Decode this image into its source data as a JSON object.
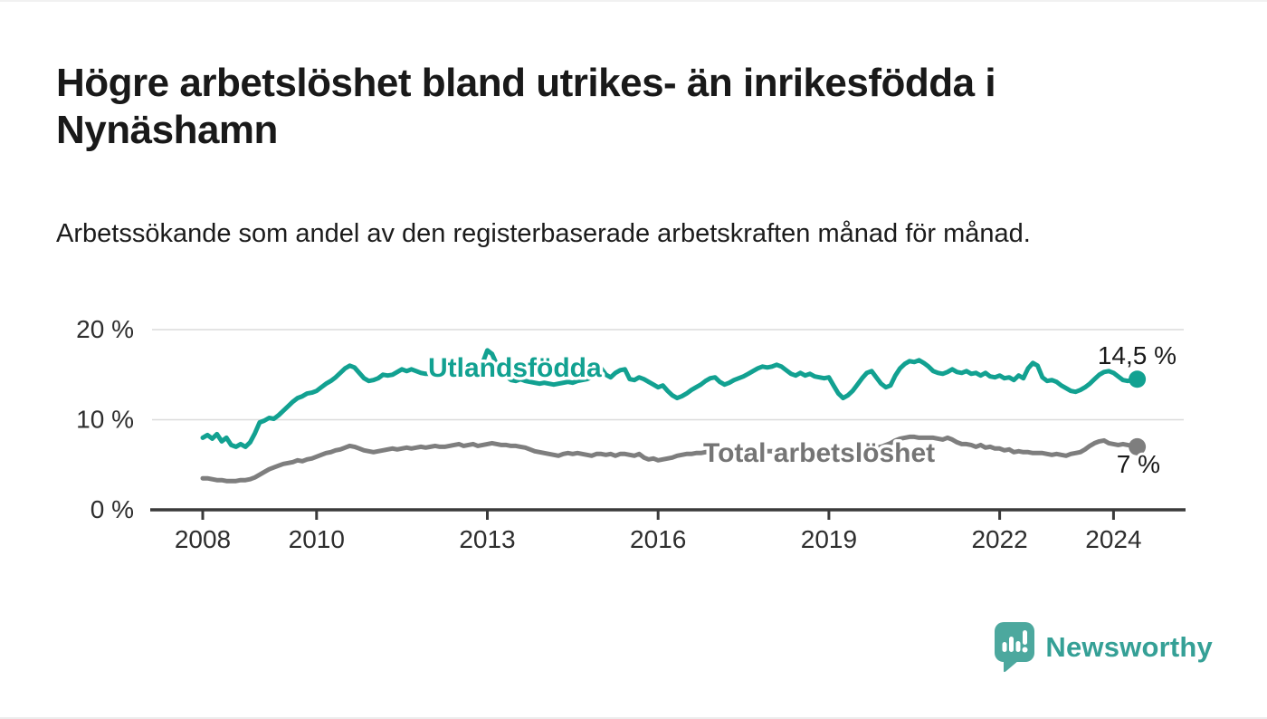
{
  "title": "Högre arbetslöshet bland utrikes- än inrikesfödda i Nynäshamn",
  "subtitle": "Arbetssökande som andel av den registerbaserade arbetskraften månad för månad.",
  "branding": {
    "logo_text": "Newsworthy",
    "logo_icon": "newsworthy-speech-bubble-bar-chart-icon",
    "logo_color": "#4CA89E",
    "logo_text_color": "#35a096"
  },
  "chart_data": {
    "type": "line",
    "title": "Högre arbetslöshet bland utrikes- än inrikesfödda i Nynäshamn",
    "subtitle": "Arbetssökande som andel av den registerbaserade arbetskraften månad för månad.",
    "unit": "%",
    "frequency": "monthly",
    "x_start": "2008-01",
    "x_end": "2024-06",
    "ylim": [
      0,
      20
    ],
    "grid": "horizontal",
    "legend": "inline-labels",
    "axis_color": "#3a3a3a",
    "gridline_color": "#dbdbdb",
    "tick_text_color": "#2e2e2e",
    "annotation_text_color": "#1a1a1a",
    "y_ticks": [
      {
        "value": 0,
        "label": "0 %"
      },
      {
        "value": 10,
        "label": "10 %"
      },
      {
        "value": 20,
        "label": "20 %"
      }
    ],
    "x_ticks": [
      {
        "year": 2008,
        "label": "2008"
      },
      {
        "year": 2010,
        "label": "2010"
      },
      {
        "year": 2013,
        "label": "2013"
      },
      {
        "year": 2016,
        "label": "2016"
      },
      {
        "year": 2019,
        "label": "2019"
      },
      {
        "year": 2022,
        "label": "2022"
      },
      {
        "year": 2024,
        "label": "2024"
      }
    ],
    "series": [
      {
        "name": "Utlandsfödda",
        "inline_label": "Utlandsfödda",
        "end_annotation": "14,5 %",
        "end_value": 14.5,
        "color": "#12a191",
        "start": "2008-01",
        "values": [
          8.0,
          8.3,
          7.9,
          8.4,
          7.6,
          8.0,
          7.2,
          7.0,
          7.3,
          7.0,
          7.5,
          8.5,
          9.7,
          9.9,
          10.2,
          10.1,
          10.5,
          11.0,
          11.5,
          12.0,
          12.4,
          12.6,
          12.9,
          13.0,
          13.2,
          13.6,
          14.0,
          14.3,
          14.7,
          15.2,
          15.7,
          16.0,
          15.8,
          15.2,
          14.6,
          14.3,
          14.4,
          14.6,
          15.0,
          14.9,
          15.0,
          15.3,
          15.6,
          15.4,
          15.6,
          15.4,
          15.2,
          15.1,
          15.1,
          15.0,
          15.2,
          15.3,
          15.1,
          14.9,
          15.0,
          15.2,
          15.1,
          15.3,
          15.5,
          16.3,
          17.7,
          17.3,
          16.1,
          15.3,
          14.8,
          14.4,
          14.3,
          14.5,
          14.3,
          14.2,
          14.1,
          14.0,
          14.1,
          14.0,
          13.9,
          14.0,
          14.1,
          14.2,
          14.1,
          14.3,
          14.4,
          14.5,
          14.7,
          15.1,
          15.7,
          15.0,
          14.7,
          15.2,
          15.5,
          15.6,
          14.5,
          14.4,
          14.7,
          14.5,
          14.2,
          13.9,
          13.6,
          13.8,
          13.2,
          12.7,
          12.4,
          12.6,
          12.9,
          13.3,
          13.6,
          13.9,
          14.3,
          14.6,
          14.7,
          14.2,
          13.9,
          14.1,
          14.4,
          14.6,
          14.8,
          15.1,
          15.4,
          15.7,
          15.9,
          15.8,
          15.9,
          16.1,
          15.9,
          15.5,
          15.1,
          14.9,
          15.2,
          14.9,
          15.1,
          14.8,
          14.7,
          14.6,
          14.7,
          13.8,
          12.9,
          12.4,
          12.7,
          13.2,
          13.9,
          14.6,
          15.2,
          15.4,
          14.7,
          14.0,
          13.6,
          13.8,
          14.9,
          15.7,
          16.2,
          16.5,
          16.4,
          16.6,
          16.3,
          15.9,
          15.4,
          15.2,
          15.1,
          15.3,
          15.6,
          15.3,
          15.2,
          15.4,
          15.1,
          15.2,
          14.9,
          15.2,
          14.8,
          14.7,
          14.9,
          14.6,
          14.7,
          14.4,
          14.9,
          14.6,
          15.7,
          16.3,
          16.0,
          14.7,
          14.3,
          14.4,
          14.2,
          13.8,
          13.5,
          13.2,
          13.1,
          13.3,
          13.6,
          14.0,
          14.5,
          15.0,
          15.3,
          15.4,
          15.2,
          14.8,
          14.4,
          14.3,
          14.4,
          14.5
        ]
      },
      {
        "name": "Total arbetslöshet",
        "inline_label": "Total arbetslöshet",
        "end_annotation": "7 %",
        "end_value": 7.0,
        "color": "#7e7e7e",
        "label_color": "#757575",
        "start": "2008-01",
        "values": [
          3.5,
          3.5,
          3.4,
          3.3,
          3.3,
          3.2,
          3.2,
          3.2,
          3.3,
          3.3,
          3.4,
          3.6,
          3.9,
          4.2,
          4.5,
          4.7,
          4.9,
          5.1,
          5.2,
          5.3,
          5.5,
          5.4,
          5.6,
          5.7,
          5.9,
          6.1,
          6.3,
          6.4,
          6.6,
          6.7,
          6.9,
          7.1,
          7.0,
          6.8,
          6.6,
          6.5,
          6.4,
          6.5,
          6.6,
          6.7,
          6.8,
          6.7,
          6.8,
          6.9,
          6.8,
          6.9,
          7.0,
          6.9,
          7.0,
          7.1,
          7.0,
          7.0,
          7.1,
          7.2,
          7.3,
          7.1,
          7.2,
          7.3,
          7.1,
          7.2,
          7.3,
          7.4,
          7.3,
          7.2,
          7.2,
          7.1,
          7.1,
          7.0,
          6.9,
          6.7,
          6.5,
          6.4,
          6.3,
          6.2,
          6.1,
          6.0,
          6.2,
          6.3,
          6.2,
          6.3,
          6.2,
          6.1,
          6.0,
          6.2,
          6.2,
          6.1,
          6.2,
          6.0,
          6.2,
          6.2,
          6.1,
          6.0,
          6.2,
          5.8,
          5.6,
          5.7,
          5.5,
          5.6,
          5.7,
          5.8,
          6.0,
          6.1,
          6.2,
          6.2,
          6.3,
          6.3,
          6.4,
          6.4,
          6.4,
          6.5,
          6.5,
          6.5,
          6.6,
          6.6,
          6.6,
          6.6,
          6.6,
          6.6,
          6.5,
          6.5,
          6.5,
          6.5,
          6.4,
          6.4,
          6.4,
          6.4,
          6.5,
          6.4,
          6.4,
          6.4,
          6.4,
          6.5,
          6.5,
          6.5,
          6.5,
          6.5,
          6.6,
          6.6,
          6.7,
          6.7,
          6.8,
          6.8,
          6.9,
          7.0,
          7.2,
          7.4,
          7.7,
          7.9,
          8.0,
          8.1,
          8.1,
          8.0,
          8.0,
          8.0,
          8.0,
          7.9,
          7.8,
          8.0,
          7.8,
          7.5,
          7.3,
          7.3,
          7.2,
          7.0,
          7.2,
          6.9,
          7.0,
          6.8,
          6.8,
          6.6,
          6.7,
          6.4,
          6.5,
          6.4,
          6.4,
          6.3,
          6.3,
          6.3,
          6.2,
          6.1,
          6.2,
          6.1,
          6.0,
          6.2,
          6.3,
          6.4,
          6.7,
          7.1,
          7.4,
          7.6,
          7.7,
          7.4,
          7.3,
          7.2,
          7.3,
          7.2,
          7.1,
          7.0
        ]
      }
    ]
  }
}
